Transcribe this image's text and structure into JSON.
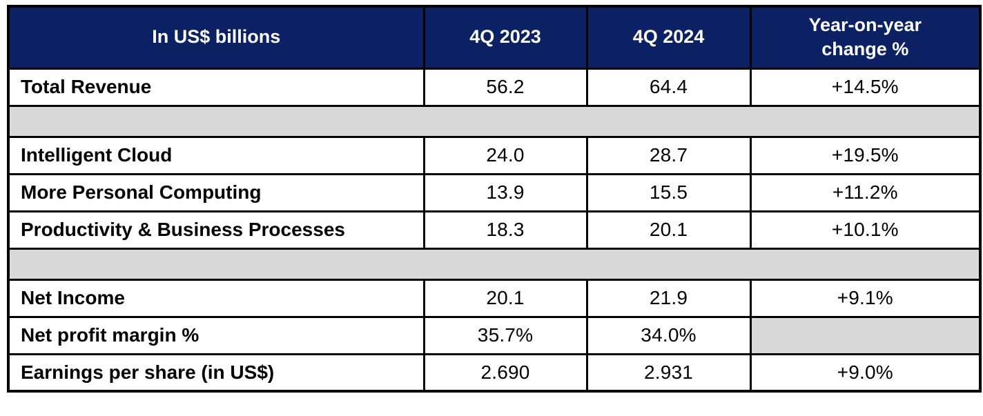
{
  "colors": {
    "header_bg": "#0b2164",
    "header_text": "#ffffff",
    "spacer_bg": "#d9d9d9",
    "row_bg": "#ffffff",
    "grid_border": "#000000",
    "body_text": "#000000"
  },
  "chart_data": {
    "type": "table",
    "title": "In US$ billions",
    "columns": [
      "In US$ billions",
      "4Q 2023",
      "4Q 2024",
      "Year-on-year change %"
    ],
    "rows": [
      {
        "metric": "Total Revenue",
        "q4_2023": "56.2",
        "q4_2024": "64.4",
        "yoy_change": "+14.5%"
      },
      {
        "metric": "Intelligent Cloud",
        "q4_2023": "24.0",
        "q4_2024": "28.7",
        "yoy_change": "+19.5%"
      },
      {
        "metric": "More Personal Computing",
        "q4_2023": "13.9",
        "q4_2024": "15.5",
        "yoy_change": "+11.2%"
      },
      {
        "metric": "Productivity & Business Processes",
        "q4_2023": "18.3",
        "q4_2024": "20.1",
        "yoy_change": "+10.1%"
      },
      {
        "metric": "Net Income",
        "q4_2023": "20.1",
        "q4_2024": "21.9",
        "yoy_change": "+9.1%"
      },
      {
        "metric": "Net profit margin %",
        "q4_2023": "35.7%",
        "q4_2024": "34.0%",
        "yoy_change": ""
      },
      {
        "metric": "Earnings per share (in US$)",
        "q4_2023": "2.690",
        "q4_2024": "2.931",
        "yoy_change": "+9.0%"
      }
    ],
    "layout": {
      "spacer_rows_after": [
        "Total Revenue",
        "Productivity & Business Processes"
      ],
      "empty_gray_cell": "Net profit margin % / Year-on-year change %"
    }
  }
}
